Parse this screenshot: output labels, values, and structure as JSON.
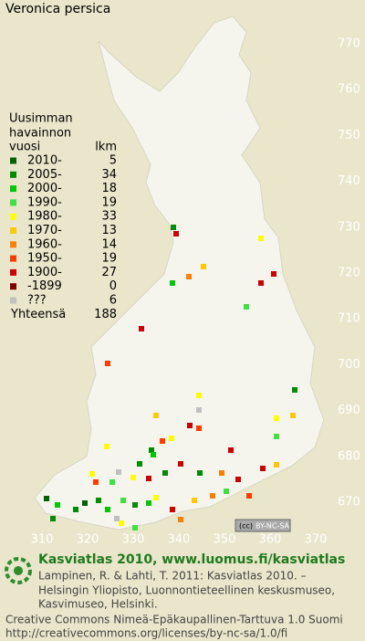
{
  "title": "Veronica persica",
  "legend": {
    "heading": [
      "Uusimman",
      "havainnon"
    ],
    "col_year": "vuosi",
    "col_count": "lkm",
    "entries": [
      {
        "label": "2010-",
        "count": 5,
        "color": "#006400"
      },
      {
        "label": "2005-",
        "count": 34,
        "color": "#008c00"
      },
      {
        "label": "2000-",
        "count": 18,
        "color": "#00c800"
      },
      {
        "label": "1990-",
        "count": 19,
        "color": "#40e040"
      },
      {
        "label": "1980-",
        "count": 33,
        "color": "#ffff00"
      },
      {
        "label": "1970-",
        "count": 13,
        "color": "#ffc800"
      },
      {
        "label": "1960-",
        "count": 14,
        "color": "#ff8000"
      },
      {
        "label": "1950-",
        "count": 19,
        "color": "#ff3c00"
      },
      {
        "label": "1900-",
        "count": 27,
        "color": "#cc0000"
      },
      {
        "label": "-1899",
        "count": 0,
        "color": "#800000"
      },
      {
        "label": "???",
        "count": 6,
        "color": "#c0c0c0"
      }
    ],
    "total_label": "Yhteensä",
    "total": 188
  },
  "x_axis": [
    "310",
    "320",
    "330",
    "340",
    "350",
    "360",
    "370"
  ],
  "y_axis": [
    "770",
    "760",
    "750",
    "740",
    "730",
    "720",
    "710",
    "700",
    "690",
    "680",
    "670"
  ],
  "license": "BY-NC-SA",
  "footer": {
    "heading": "Kasviatlas 2010, www.luomus.fi/kasviatlas",
    "citation": [
      "Lampinen, R. & Lahti, T. 2011: Kasviatlas 2010. –",
      "Helsingin Yliopisto, Luonnontieteellinen keskusmuseo,",
      "Kasvimuseo, Helsinki."
    ],
    "license_lines": [
      "Creative Commons Nimeä-Epäkaupallinen-Tarttuva 1.0 Suomi",
      "http://creativecommons.org/licenses/by-nc-sa/1.0/fi"
    ]
  }
}
